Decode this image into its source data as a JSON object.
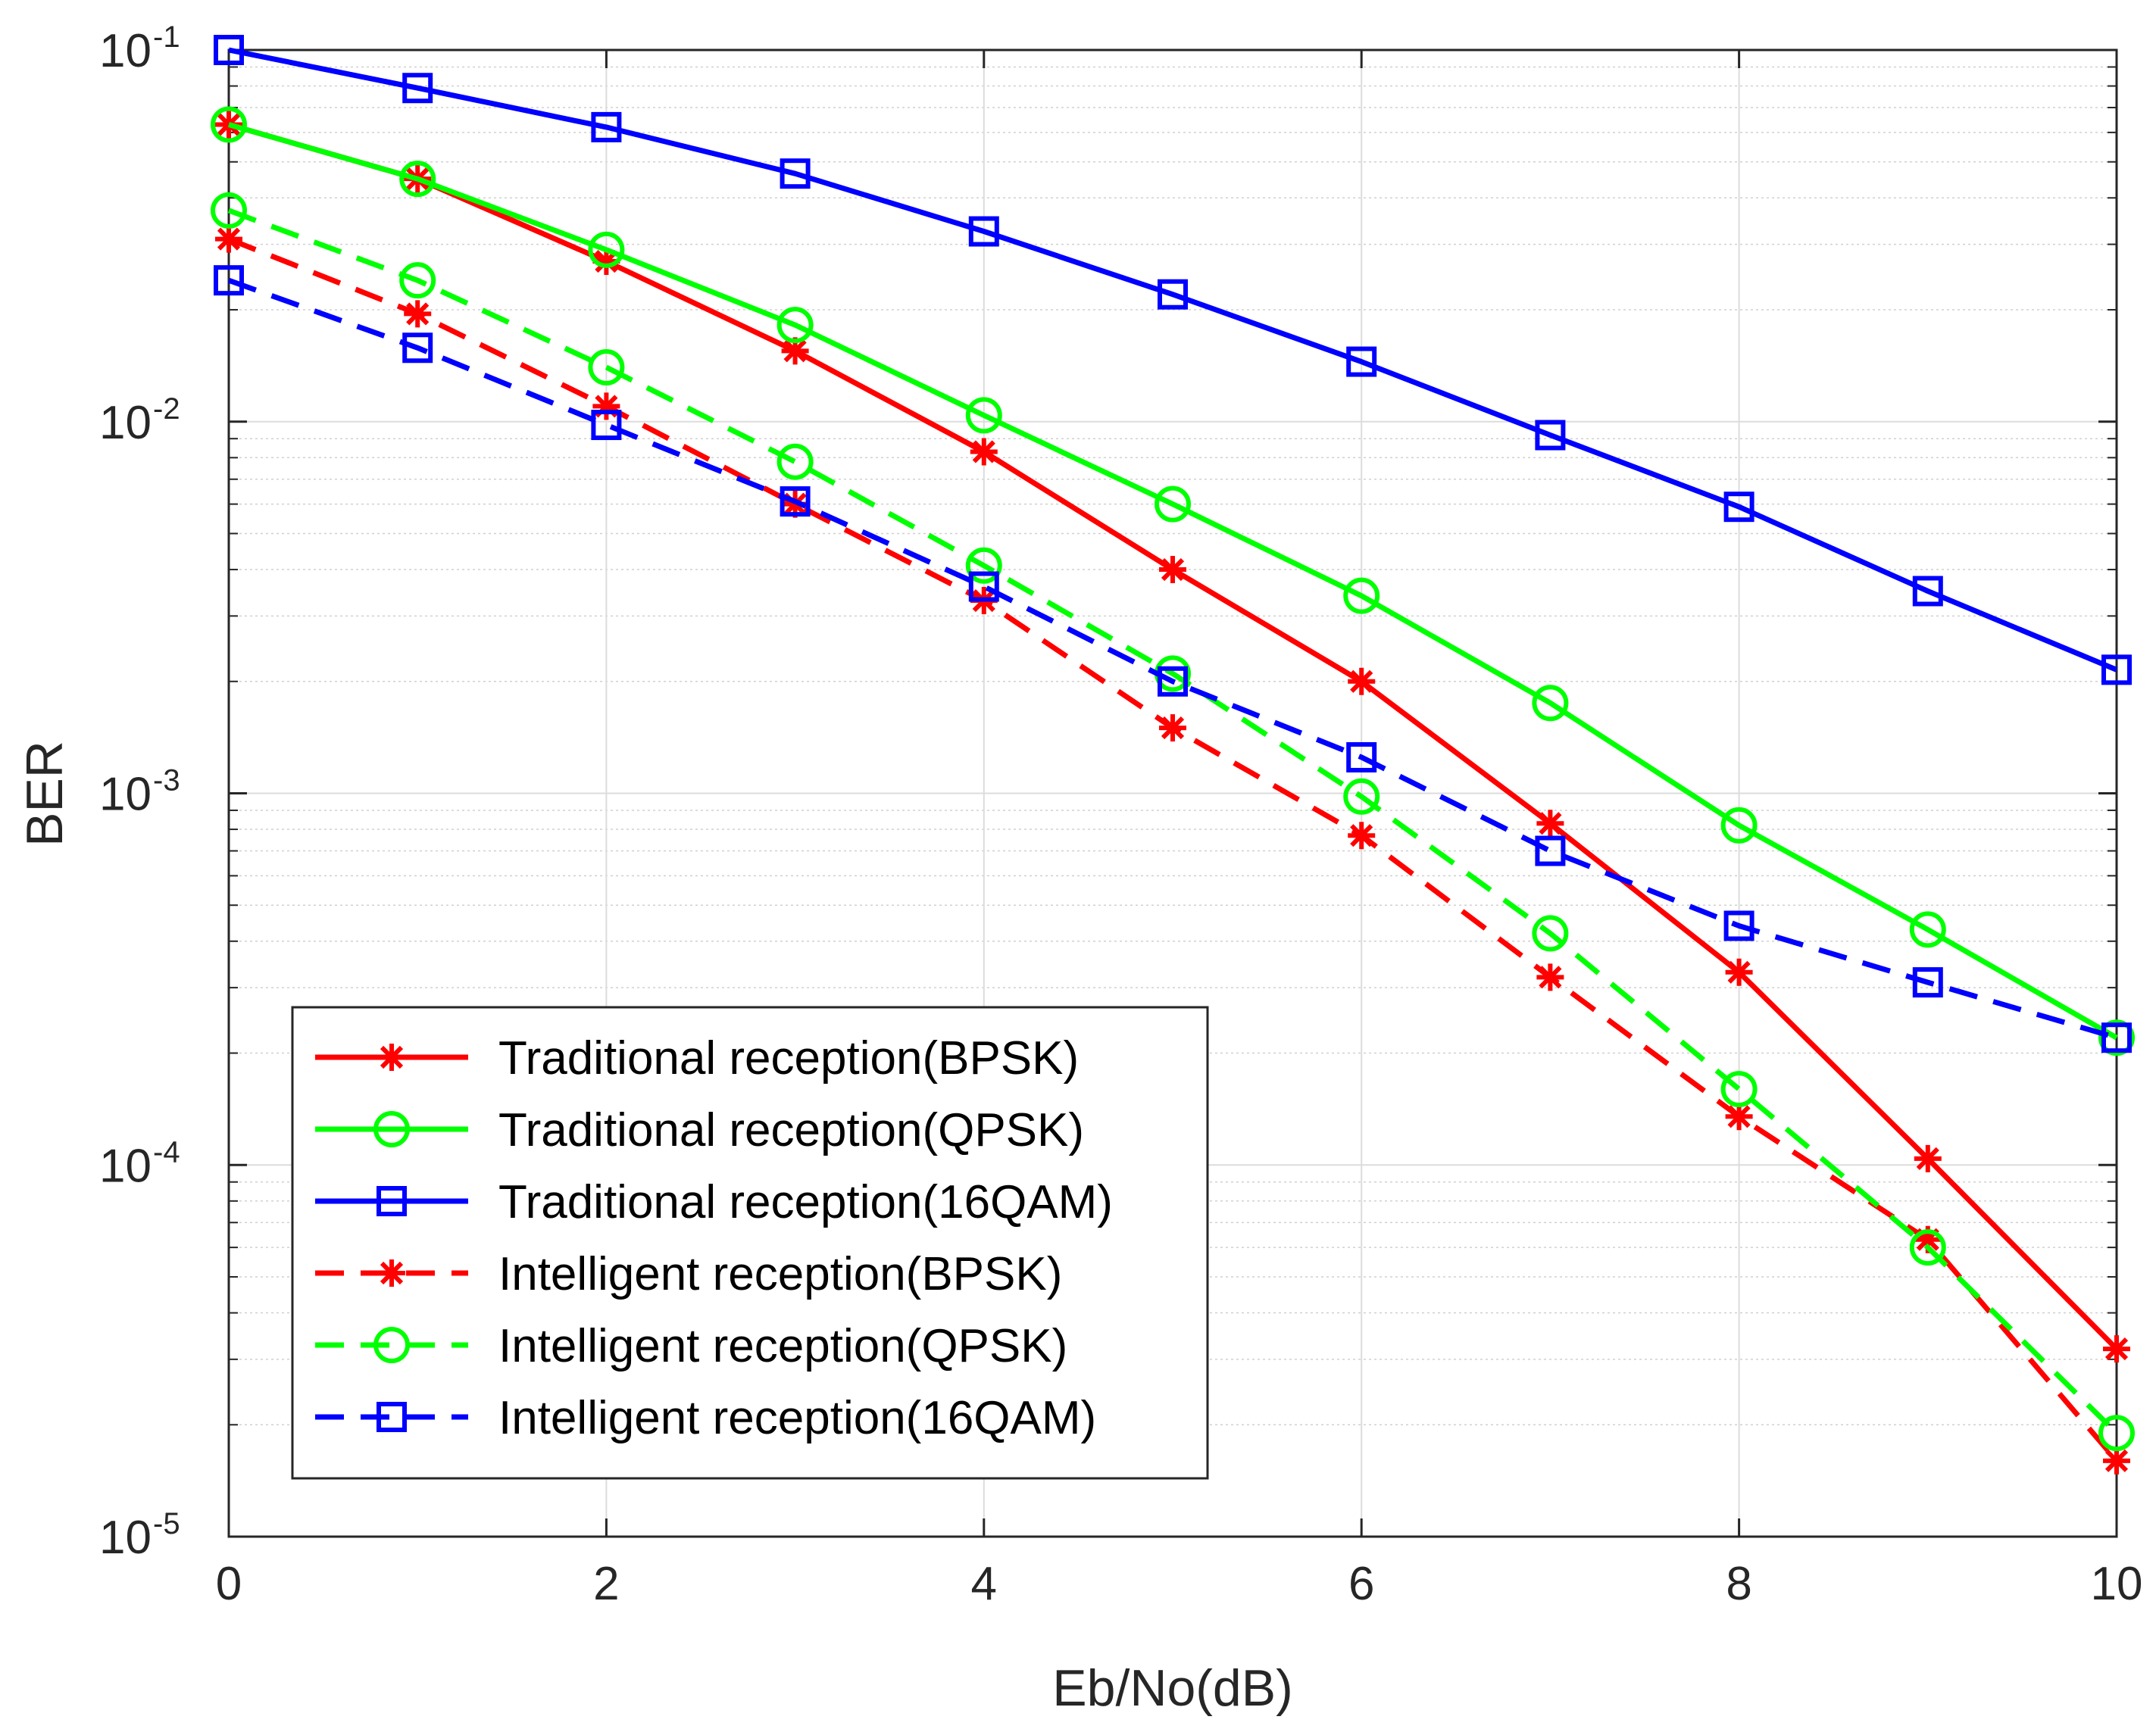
{
  "chart_data": {
    "type": "line",
    "title": "",
    "xlabel": "Eb/No(dB)",
    "ylabel": "BER",
    "yscale": "log",
    "xlim": [
      0,
      10
    ],
    "ylim": [
      1e-05,
      0.1
    ],
    "grid": true,
    "minor_grid": true,
    "legend_position": "bottom-left",
    "x": [
      0,
      1,
      2,
      3,
      4,
      5,
      6,
      7,
      8,
      9,
      10
    ],
    "xticks": [
      0,
      2,
      4,
      6,
      8,
      10
    ],
    "xtick_labels": [
      "0",
      "2",
      "4",
      "6",
      "8",
      "10"
    ],
    "yticks": [
      {
        "value": 0.1,
        "base": "10",
        "exp": "-1"
      },
      {
        "value": 0.01,
        "base": "10",
        "exp": "-2"
      },
      {
        "value": 0.001,
        "base": "10",
        "exp": "-3"
      },
      {
        "value": 0.0001,
        "base": "10",
        "exp": "-4"
      },
      {
        "value": 1e-05,
        "base": "10",
        "exp": "-5"
      }
    ],
    "series": [
      {
        "name": "Traditional reception(BPSK)",
        "color": "#ff0000",
        "dash": "solid",
        "marker": "asterisk",
        "values": [
          0.063,
          0.045,
          0.027,
          0.0155,
          0.0083,
          0.004,
          0.002,
          0.00083,
          0.00033,
          0.000104,
          3.2e-05
        ]
      },
      {
        "name": "Traditional reception(QPSK)",
        "color": "#00ff00",
        "dash": "solid",
        "marker": "circle",
        "values": [
          0.063,
          0.045,
          0.029,
          0.0182,
          0.0104,
          0.006,
          0.0034,
          0.00175,
          0.00082,
          0.00043,
          0.00022
        ]
      },
      {
        "name": "Traditional reception(16QAM)",
        "color": "#0000ff",
        "dash": "solid",
        "marker": "square",
        "values": [
          0.1,
          0.079,
          0.062,
          0.0465,
          0.0325,
          0.022,
          0.0145,
          0.0092,
          0.0059,
          0.0035,
          0.00215
        ]
      },
      {
        "name": "Intelligent reception(BPSK)",
        "color": "#ff0000",
        "dash": "dashed",
        "marker": "asterisk",
        "values": [
          0.031,
          0.0195,
          0.011,
          0.006,
          0.0033,
          0.0015,
          0.00077,
          0.00032,
          0.000135,
          6.3e-05,
          1.6e-05
        ]
      },
      {
        "name": "Intelligent reception(QPSK)",
        "color": "#00ff00",
        "dash": "dashed",
        "marker": "circle",
        "values": [
          0.037,
          0.024,
          0.014,
          0.0078,
          0.0041,
          0.0021,
          0.00098,
          0.00042,
          0.00016,
          6e-05,
          1.9e-05
        ]
      },
      {
        "name": "Intelligent reception(16QAM)",
        "color": "#0000ff",
        "dash": "dashed",
        "marker": "square",
        "values": [
          0.024,
          0.0158,
          0.0098,
          0.0061,
          0.0036,
          0.002,
          0.00125,
          0.0007,
          0.00044,
          0.00031,
          0.00022
        ]
      }
    ]
  }
}
